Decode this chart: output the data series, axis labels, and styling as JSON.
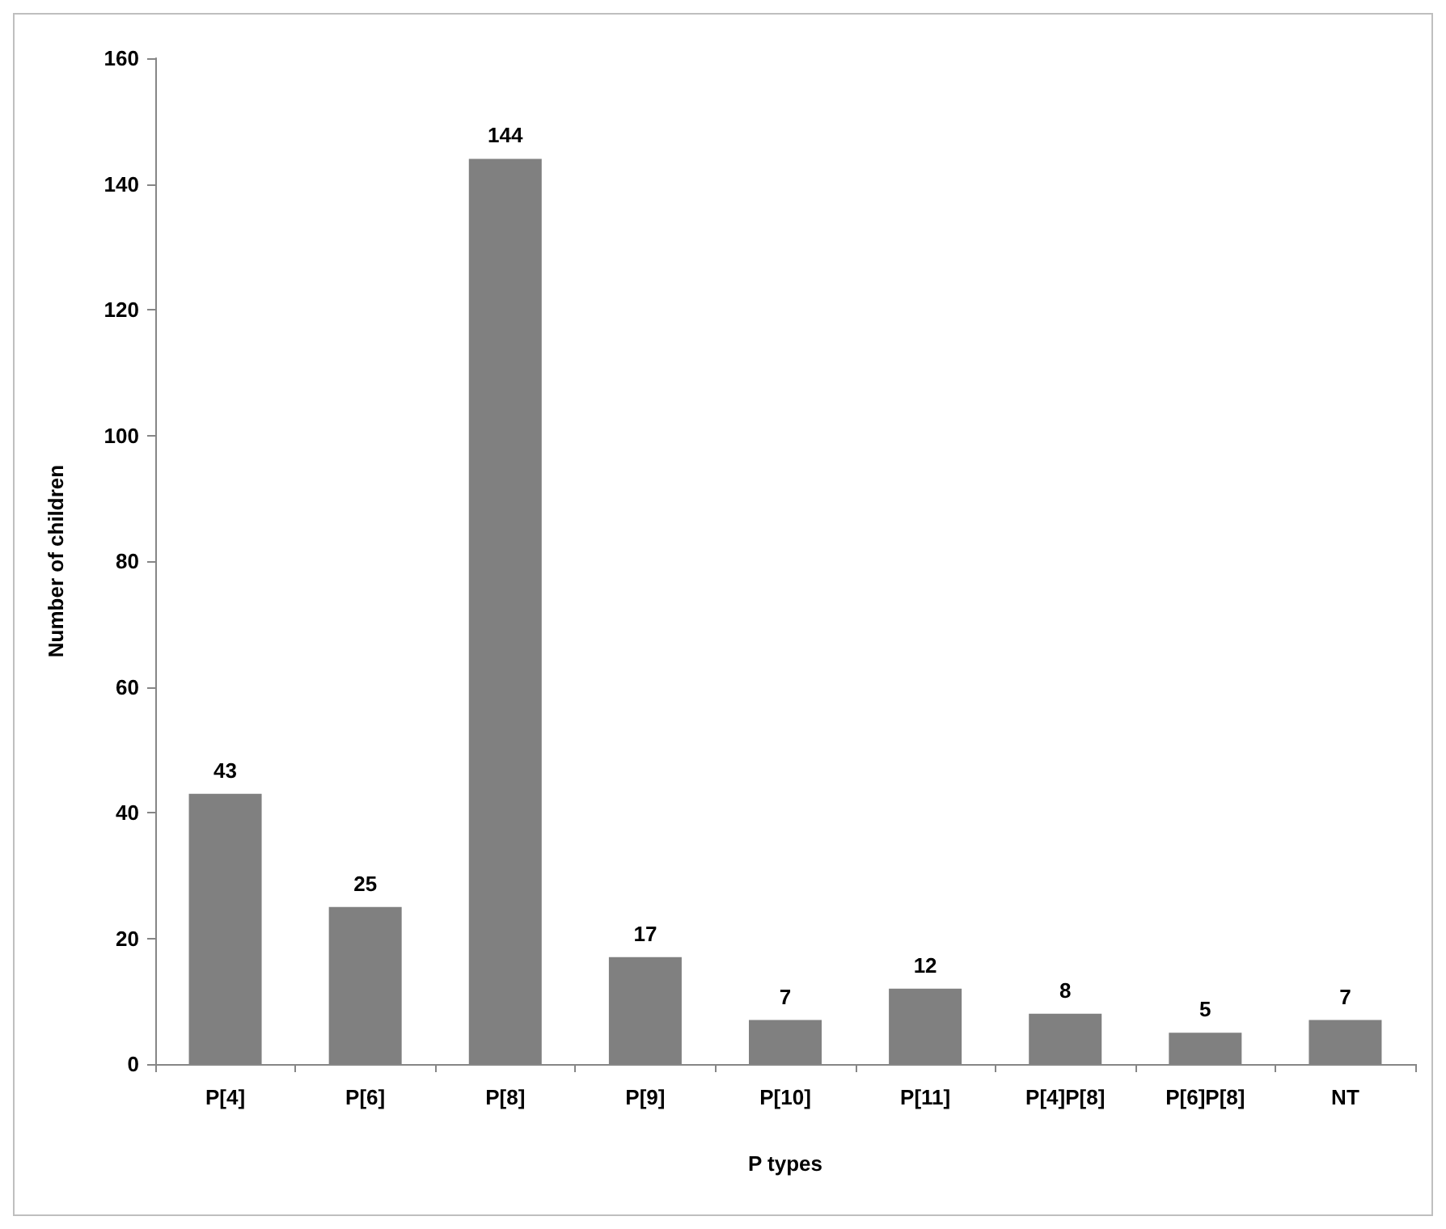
{
  "chart_data": {
    "type": "bar",
    "xlabel": "P types",
    "ylabel": "Number of children",
    "categories": [
      "P[4]",
      "P[6]",
      "P[8]",
      "P[9]",
      "P[10]",
      "P[11]",
      "P[4]P[8]",
      "P[6]P[8]",
      "NT"
    ],
    "values": [
      43,
      25,
      144,
      17,
      7,
      12,
      8,
      5,
      7
    ],
    "color": "#808080",
    "ylim": [
      0,
      160
    ],
    "yticks": [
      0,
      20,
      40,
      60,
      80,
      100,
      120,
      140,
      160
    ],
    "grid": false,
    "data_labels": true
  }
}
